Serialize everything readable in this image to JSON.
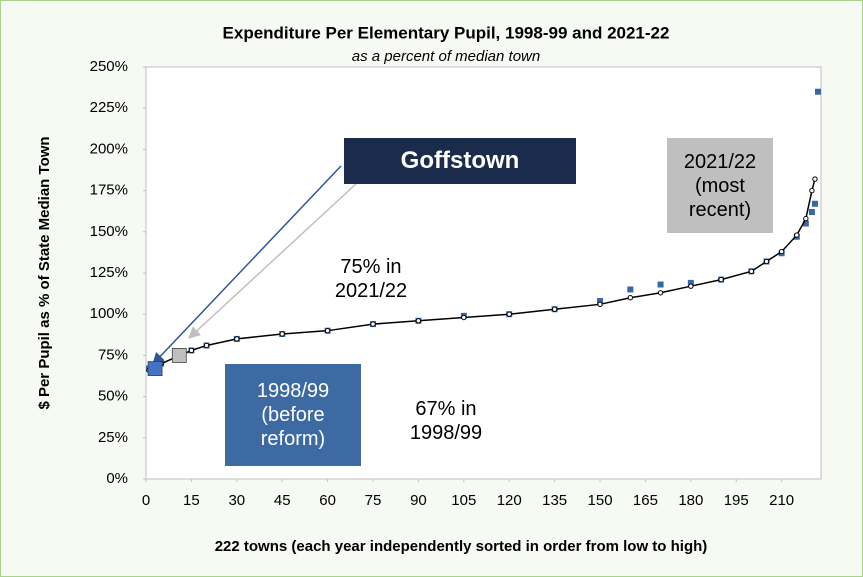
{
  "chart_data": {
    "type": "line",
    "title": "Expenditure Per Elementary Pupil, 1998-99 and 2021-22",
    "subtitle": "as a percent of median town",
    "x_label": "222 towns (each year independently sorted in order from low to high)",
    "y_label": "$ Per Pupil as % of State Median Town",
    "x": [
      1,
      5,
      10,
      15,
      20,
      30,
      45,
      60,
      75,
      90,
      105,
      120,
      135,
      150,
      160,
      170,
      180,
      190,
      200,
      205,
      210,
      215,
      218,
      220,
      221,
      222
    ],
    "series": [
      {
        "name": "1998/99\n(before\nreform)",
        "color": "#3a67a8",
        "marker": "square",
        "values": [
          67,
          70,
          74,
          78,
          81,
          85,
          88,
          90,
          94,
          96,
          99,
          100,
          103,
          108,
          115,
          118,
          119,
          121,
          126,
          132,
          137,
          147,
          155,
          162,
          167,
          235
        ]
      },
      {
        "name": "2021/22\n(most\nrecent)",
        "color": "#000000",
        "marker": "circle",
        "values": [
          66,
          70,
          74,
          78,
          81,
          85,
          88,
          90,
          94,
          96,
          98,
          100,
          103,
          106,
          110,
          113,
          117,
          121,
          126,
          132,
          138,
          148,
          158,
          175,
          182,
          null
        ]
      }
    ],
    "highlights": [
      {
        "x": 3,
        "y": 67,
        "color": "#4472c4"
      },
      {
        "x": 11,
        "y": 75,
        "color": "#bfbfbf"
      }
    ],
    "annotations": [
      "Goffstown",
      "75% in\n2021/22",
      "67% in\n1998/99"
    ],
    "xlim": [
      0,
      223
    ],
    "xticks": [
      0,
      15,
      30,
      45,
      60,
      75,
      90,
      105,
      120,
      135,
      150,
      165,
      180,
      195,
      210
    ],
    "ylim": [
      0,
      250
    ],
    "yticks": [
      {
        "value": 0,
        "label": "0%"
      },
      {
        "value": 25,
        "label": "25%"
      },
      {
        "value": 50,
        "label": "50%"
      },
      {
        "value": 75,
        "label": "75%"
      },
      {
        "value": 100,
        "label": "100%"
      },
      {
        "value": 125,
        "label": "125%"
      },
      {
        "value": 150,
        "label": "150%"
      },
      {
        "value": 175,
        "label": "175%"
      },
      {
        "value": 200,
        "label": "200%"
      },
      {
        "value": 225,
        "label": "225%"
      },
      {
        "value": 250,
        "label": "250%"
      }
    ],
    "grid": false
  }
}
